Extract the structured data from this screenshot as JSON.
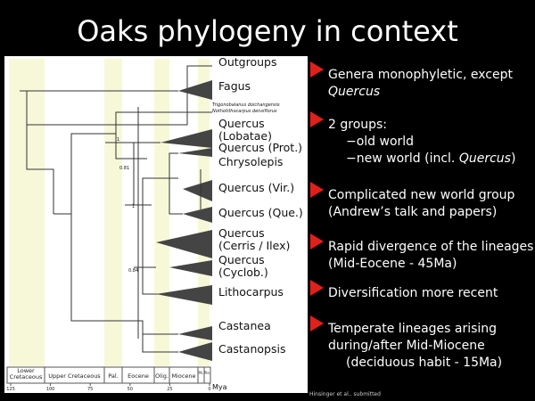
{
  "title": "Oaks phylogeny in context",
  "figure": {
    "clades": [
      {
        "lines": [
          "Outgroups"
        ]
      },
      {
        "lines": [
          "Fagus"
        ]
      },
      {
        "lines": [
          "Quercus",
          "(Lobatae)"
        ]
      },
      {
        "lines": [
          "Quercus (Prot.)"
        ]
      },
      {
        "lines": [
          "Chrysolepis"
        ]
      },
      {
        "lines": [
          "Quercus (Vir.)"
        ]
      },
      {
        "lines": [
          "Quercus (Que.)"
        ]
      },
      {
        "lines": [
          "Quercus",
          "(Cerris / Ilex)"
        ]
      },
      {
        "lines": [
          "Quercus",
          "(Cyclob.)"
        ]
      },
      {
        "lines": [
          "Lithocarpus"
        ]
      },
      {
        "lines": [
          "Castanea"
        ]
      },
      {
        "lines": [
          "Castanopsis"
        ]
      }
    ],
    "species": [
      "Trigonobalanus doichangensis",
      "Nothotithocarpus densiflorus"
    ],
    "support": [
      1,
      0.81,
      1,
      0.84
    ],
    "periods": [
      [
        "Lower",
        "Cretaceous"
      ],
      [
        "Upper Cretaceous"
      ],
      [
        "Pal."
      ],
      [
        "Eocene"
      ],
      [
        "Olig."
      ],
      [
        "Miocene"
      ],
      [
        "Pli."
      ],
      [
        "Ple."
      ]
    ],
    "axis": {
      "ticks": [
        125,
        100,
        75,
        50,
        25,
        0
      ],
      "unit": "Mya"
    }
  },
  "bullets": [
    {
      "lines": [
        [
          "Genera monophyletic, except"
        ],
        [
          {
            "text": "Quercus",
            "italic": true
          }
        ]
      ]
    },
    {
      "lines": [
        [
          "2 groups:"
        ]
      ],
      "sub": [
        [
          "−old world"
        ],
        [
          "−new world (incl. ",
          {
            "text": "Quercus",
            "italic": true
          },
          ")"
        ]
      ]
    },
    {
      "lines": [
        [
          "Complicated new world group"
        ],
        [
          "(Andrew’s talk and papers)"
        ]
      ]
    },
    {
      "lines": [
        [
          "Rapid divergence of the lineages"
        ],
        [
          "(Mid-Eocene - 45Ma)"
        ]
      ]
    },
    {
      "lines": [
        [
          "Diversification more recent"
        ]
      ]
    },
    {
      "lines": [
        [
          "Temperate lineages arising"
        ],
        [
          "during/after Mid-Miocene"
        ]
      ],
      "sub": [
        [
          "(deciduous habit - 15Ma)"
        ]
      ]
    }
  ],
  "citation": "Hinsinger et al.. submitted"
}
